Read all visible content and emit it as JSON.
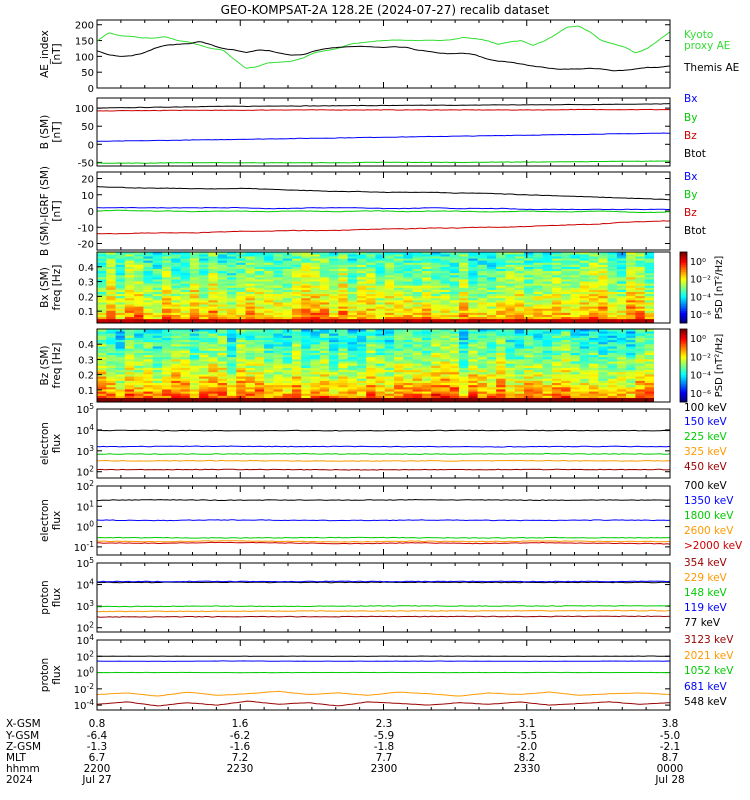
{
  "title": "GEO-KOMPSAT-2A 128.2E (2024-07-27) recalib dataset",
  "colors": {
    "black": "#000000",
    "blue": "#0000ff",
    "green": "#00cc00",
    "red": "#cc0000",
    "orange": "#ff9900",
    "darkred": "#990000",
    "kyoto": "#33dd33"
  },
  "chart_data": [
    {
      "id": "ae",
      "type": "line",
      "ylabel": "AE_index\n[nT]",
      "yticks": [
        0,
        50,
        100,
        150,
        200
      ],
      "ylim": [
        0,
        215
      ],
      "legend": [
        {
          "text": "Kyoto\nproxy AE",
          "color": "#33dd33"
        },
        {
          "text": "Themis AE",
          "color": "#000000"
        }
      ],
      "series": [
        {
          "name": "Kyoto proxy AE",
          "color": "#33dd33",
          "values": [
            148,
            175,
            165,
            163,
            158,
            158,
            162,
            150,
            145,
            135,
            125,
            120,
            90,
            62,
            68,
            80,
            82,
            85,
            95,
            112,
            118,
            125,
            138,
            143,
            147,
            150,
            152,
            150,
            150,
            152,
            150,
            153,
            160,
            156,
            150,
            138,
            146,
            150,
            135,
            148,
            168,
            192,
            196,
            178,
            150,
            140,
            130,
            110,
            125,
            150,
            178
          ]
        },
        {
          "name": "Themis AE",
          "color": "#000000",
          "values": [
            118,
            105,
            100,
            102,
            110,
            125,
            135,
            138,
            140,
            148,
            136,
            125,
            120,
            112,
            120,
            118,
            110,
            104,
            105,
            118,
            125,
            128,
            130,
            132,
            130,
            128,
            130,
            128,
            120,
            115,
            110,
            108,
            110,
            105,
            92,
            85,
            82,
            76,
            70,
            65,
            60,
            60,
            60,
            62,
            60,
            55,
            56,
            60,
            65,
            65,
            70
          ]
        }
      ]
    },
    {
      "id": "b",
      "type": "line",
      "ylabel": "B (SM)\n[nT]",
      "yticks": [
        -50,
        0,
        50,
        100
      ],
      "ylim": [
        -60,
        128
      ],
      "legend": [
        {
          "text": "Bx",
          "color": "#0000ff"
        },
        {
          "text": "By",
          "color": "#00cc00"
        },
        {
          "text": "Bz",
          "color": "#cc0000"
        },
        {
          "text": "Btot",
          "color": "#000000"
        }
      ],
      "series": [
        {
          "name": "Btot",
          "color": "#000000",
          "values": [
            100,
            101,
            102,
            103,
            104,
            105,
            105,
            106,
            106,
            106,
            107,
            107,
            107,
            108,
            108,
            108,
            109,
            109,
            109,
            110,
            110,
            111,
            111,
            112
          ]
        },
        {
          "name": "Bz",
          "color": "#cc0000",
          "values": [
            92,
            93,
            93,
            94,
            94,
            94,
            94,
            95,
            95,
            95,
            95,
            95,
            95,
            95,
            95,
            95,
            95,
            95,
            95,
            96,
            96,
            96,
            96,
            96
          ]
        },
        {
          "name": "Bx",
          "color": "#0000ff",
          "values": [
            8,
            9,
            10,
            11,
            12,
            13,
            14,
            15,
            16,
            17,
            18,
            19,
            20,
            21,
            22,
            23,
            24,
            25,
            26,
            27,
            28,
            29,
            30,
            31
          ]
        },
        {
          "name": "By",
          "color": "#00cc00",
          "values": [
            -52,
            -52,
            -52,
            -51,
            -51,
            -51,
            -51,
            -51,
            -51,
            -51,
            -51,
            -50,
            -50,
            -50,
            -50,
            -50,
            -49,
            -49,
            -49,
            -48,
            -48,
            -47,
            -47,
            -46
          ]
        }
      ]
    },
    {
      "id": "db",
      "type": "line",
      "ylabel": "B (SM)-IGRF (SM)\n[nT]",
      "yticks": [
        -20,
        -10,
        0,
        10,
        20
      ],
      "ylim": [
        -24,
        24
      ],
      "legend": [
        {
          "text": "Bx",
          "color": "#0000ff"
        },
        {
          "text": "By",
          "color": "#00cc00"
        },
        {
          "text": "Bz",
          "color": "#cc0000"
        },
        {
          "text": "Btot",
          "color": "#000000"
        }
      ],
      "series": [
        {
          "name": "Btot",
          "color": "#000000",
          "values": [
            15,
            14.5,
            14,
            14,
            13.8,
            13.5,
            14,
            13.5,
            13,
            12.5,
            12,
            12,
            11.5,
            11.5,
            11.5,
            11,
            11,
            10.5,
            10,
            9.5,
            9,
            8.5,
            8,
            7.5,
            7
          ]
        },
        {
          "name": "Bx",
          "color": "#0000ff",
          "values": [
            2,
            2,
            2,
            2,
            2,
            2,
            2,
            1.5,
            1.5,
            2,
            2,
            2,
            1.5,
            1.5,
            2,
            1.5,
            1.5,
            1.5,
            1,
            1,
            1,
            1,
            1,
            1,
            1
          ]
        },
        {
          "name": "By",
          "color": "#00cc00",
          "values": [
            0,
            0.5,
            0,
            0,
            -0.5,
            0,
            0,
            -0.5,
            0,
            0,
            -0.5,
            0,
            0,
            -0.5,
            0,
            0,
            -0.5,
            -0.5,
            0,
            -0.5,
            -0.5,
            0,
            -0.5,
            -1,
            -0.5
          ]
        },
        {
          "name": "Bz",
          "color": "#cc0000",
          "values": [
            -14,
            -14,
            -13.5,
            -13.5,
            -13.5,
            -13,
            -12.5,
            -12.5,
            -12,
            -12,
            -12,
            -11.5,
            -11,
            -11,
            -10.5,
            -10.5,
            -10,
            -10,
            -9.5,
            -9,
            -8.5,
            -8,
            -7,
            -6.5,
            -6
          ]
        }
      ]
    },
    {
      "id": "bx_spec",
      "type": "heatmap",
      "ylabel": "Bx (SM)\nfreq [Hz]",
      "yticks": [
        0.1,
        0.2,
        0.3,
        0.4
      ],
      "ylim": [
        0.02,
        0.5
      ],
      "colorbar": {
        "label": "PSD [nT²/Hz]",
        "ticks": [
          "10⁰",
          "10⁻²",
          "10⁻⁴",
          "10⁻⁶"
        ],
        "range": [
          -7,
          1
        ]
      },
      "ncols": 60,
      "nrows": 34,
      "base_low": -0.5,
      "base_high": -3.5
    },
    {
      "id": "bz_spec",
      "type": "heatmap",
      "ylabel": "Bz (SM)\nfreq [Hz]",
      "yticks": [
        0.1,
        0.2,
        0.3,
        0.4
      ],
      "ylim": [
        0.02,
        0.5
      ],
      "colorbar": {
        "label": "PSD [nT²/Hz]",
        "ticks": [
          "10⁰",
          "10⁻²",
          "10⁻⁴",
          "10⁻⁶"
        ],
        "range": [
          -7,
          1
        ]
      },
      "ncols": 60,
      "nrows": 34,
      "base_low": 0.2,
      "base_high": -3.8
    },
    {
      "id": "eflux1",
      "type": "line",
      "log": true,
      "ylabel": "electron\nflux",
      "yticks_exp": [
        2,
        3,
        4,
        5
      ],
      "ylim_exp": [
        1.7,
        5
      ],
      "legend": [
        {
          "text": "100 keV",
          "color": "#000000"
        },
        {
          "text": "150 keV",
          "color": "#0000ff"
        },
        {
          "text": "225 keV",
          "color": "#00cc00"
        },
        {
          "text": "325 keV",
          "color": "#ff9900"
        },
        {
          "text": "450 keV",
          "color": "#990000"
        }
      ],
      "series": [
        {
          "name": "100 keV",
          "color": "#000000",
          "values": [
            3.98,
            3.97,
            3.96,
            3.97,
            3.96,
            3.97,
            3.98,
            3.97,
            3.96,
            3.97
          ]
        },
        {
          "name": "150 keV",
          "color": "#0000ff",
          "values": [
            3.2,
            3.21,
            3.22,
            3.2,
            3.21,
            3.2,
            3.19,
            3.2,
            3.21,
            3.2
          ]
        },
        {
          "name": "225 keV",
          "color": "#00cc00",
          "values": [
            2.85,
            2.84,
            2.85,
            2.86,
            2.85,
            2.84,
            2.85,
            2.86,
            2.85,
            2.85
          ]
        },
        {
          "name": "325 keV",
          "color": "#ff9900",
          "values": [
            2.52,
            2.52,
            2.53,
            2.52,
            2.51,
            2.52,
            2.52,
            2.53,
            2.52,
            2.52
          ]
        },
        {
          "name": "450 keV",
          "color": "#990000",
          "values": [
            2.1,
            2.1,
            2.11,
            2.1,
            2.09,
            2.1,
            2.1,
            2.11,
            2.1,
            2.1
          ]
        }
      ]
    },
    {
      "id": "eflux2",
      "type": "line",
      "log": true,
      "ylabel": "electron\nflux",
      "yticks_exp": [
        -1,
        0,
        1,
        2
      ],
      "ylim_exp": [
        -1.4,
        2
      ],
      "legend": [
        {
          "text": "700 keV",
          "color": "#000000"
        },
        {
          "text": "1350 keV",
          "color": "#0000ff"
        },
        {
          "text": "1800 keV",
          "color": "#00cc00"
        },
        {
          "text": "2600 keV",
          "color": "#ff9900"
        },
        {
          "text": ">2000 keV",
          "color": "#cc0000"
        }
      ],
      "series": [
        {
          "name": "700 keV",
          "color": "#000000",
          "values": [
            1.3,
            1.32,
            1.3,
            1.31,
            1.3,
            1.32,
            1.31,
            1.3,
            1.31,
            1.3
          ]
        },
        {
          "name": "1350 keV",
          "color": "#0000ff",
          "values": [
            0.32,
            0.3,
            0.33,
            0.31,
            0.3,
            0.32,
            0.31,
            0.3,
            0.32,
            0.31
          ]
        },
        {
          "name": "1800 keV",
          "color": "#00cc00",
          "values": [
            -0.55,
            -0.55,
            -0.56,
            -0.55,
            -0.54,
            -0.55,
            -0.56,
            -0.55,
            -0.55,
            -0.55
          ]
        },
        {
          "name": "2600 keV",
          "color": "#ff9900",
          "values": [
            -0.72,
            -0.74,
            -0.7,
            -0.73,
            -0.75,
            -0.72,
            -0.74,
            -0.71,
            -0.73,
            -0.74
          ]
        },
        {
          "name": ">2000 keV",
          "color": "#cc0000",
          "values": [
            -0.8,
            -0.82,
            -0.78,
            -0.81,
            -0.84,
            -0.8,
            -0.83,
            -0.79,
            -0.82,
            -0.85
          ]
        }
      ]
    },
    {
      "id": "pflux1",
      "type": "line",
      "log": true,
      "ylabel": "proton\nflux",
      "yticks_exp": [
        2,
        3,
        4,
        5
      ],
      "ylim_exp": [
        1.8,
        5
      ],
      "legend": [
        {
          "text": "354 keV",
          "color": "#990000"
        },
        {
          "text": "229 keV",
          "color": "#ff9900"
        },
        {
          "text": "148 keV",
          "color": "#00cc00"
        },
        {
          "text": "119 keV",
          "color": "#0000ff"
        },
        {
          "text": "77 keV",
          "color": "#000000"
        }
      ],
      "series": [
        {
          "name": "77 keV",
          "color": "#000000",
          "values": [
            4.1,
            4.1,
            4.11,
            4.1,
            4.1,
            4.11,
            4.1,
            4.1,
            4.1,
            4.1
          ]
        },
        {
          "name": "119 keV",
          "color": "#0000ff",
          "values": [
            4.14,
            4.14,
            4.15,
            4.14,
            4.15,
            4.14,
            4.15,
            4.14,
            4.14,
            4.15
          ]
        },
        {
          "name": "148 keV",
          "color": "#00cc00",
          "values": [
            2.98,
            2.99,
            3.0,
            2.99,
            3.0,
            3.01,
            3.0,
            3.01,
            3.01,
            3.02
          ]
        },
        {
          "name": "229 keV",
          "color": "#ff9900",
          "values": [
            2.75,
            2.76,
            2.76,
            2.77,
            2.77,
            2.78,
            2.78,
            2.78,
            2.79,
            2.79
          ]
        },
        {
          "name": "354 keV",
          "color": "#990000",
          "values": [
            2.5,
            2.5,
            2.51,
            2.51,
            2.51,
            2.52,
            2.52,
            2.52,
            2.53,
            2.53
          ]
        }
      ]
    },
    {
      "id": "pflux2",
      "type": "line",
      "log": true,
      "ylabel": "proton\nflux",
      "yticks_exp": [
        -4,
        -2,
        0,
        2,
        4
      ],
      "ylim_exp": [
        -4.6,
        4
      ],
      "legend": [
        {
          "text": "3123 keV",
          "color": "#990000"
        },
        {
          "text": "2021 keV",
          "color": "#ff9900"
        },
        {
          "text": "1052 keV",
          "color": "#00cc00"
        },
        {
          "text": "681 keV",
          "color": "#0000ff"
        },
        {
          "text": "548 keV",
          "color": "#000000"
        }
      ],
      "series": [
        {
          "name": "548 keV",
          "color": "#000000",
          "values": [
            2.0,
            2.02,
            2.0,
            2.01,
            2.0,
            2.02,
            2.01,
            2.0,
            2.01,
            2.02
          ]
        },
        {
          "name": "681 keV",
          "color": "#0000ff",
          "values": [
            1.4,
            1.38,
            1.42,
            1.4,
            1.39,
            1.41,
            1.4,
            1.38,
            1.41,
            1.4
          ]
        },
        {
          "name": "1052 keV",
          "color": "#00cc00",
          "values": [
            0.0,
            0.01,
            0.0,
            0.0,
            0.01,
            0.0,
            0.0,
            0.01,
            0.0,
            0.0
          ]
        },
        {
          "name": "2021 keV",
          "color": "#ff9900",
          "values": [
            -2.7,
            -2.5,
            -2.9,
            -2.4,
            -2.8,
            -2.6,
            -2.3,
            -2.7,
            -2.5,
            -2.8,
            -2.4,
            -2.6,
            -2.9,
            -2.5,
            -2.7,
            -2.4,
            -2.8,
            -2.6,
            -2.5,
            -2.7
          ]
        },
        {
          "name": "3123 keV",
          "color": "#990000",
          "values": [
            -3.9,
            -3.6,
            -4.1,
            -3.7,
            -4.0,
            -3.5,
            -3.9,
            -3.7,
            -4.1,
            -3.6,
            -3.8,
            -4.0,
            -3.7,
            -3.9,
            -3.6,
            -4.0,
            -3.8,
            -3.6,
            -3.9,
            -3.7
          ]
        }
      ]
    }
  ],
  "xaxis": {
    "rows": [
      {
        "label": "X-GSM",
        "values": [
          "0.8",
          "1.6",
          "2.3",
          "3.1",
          "3.8"
        ]
      },
      {
        "label": "Y-GSM",
        "values": [
          "-6.4",
          "-6.2",
          "-5.9",
          "-5.5",
          "-5.0"
        ]
      },
      {
        "label": "Z-GSM",
        "values": [
          "-1.3",
          "-1.6",
          "-1.8",
          "-2.0",
          "-2.1"
        ]
      },
      {
        "label": "MLT",
        "values": [
          "6.7",
          "7.2",
          "7.7",
          "8.2",
          "8.7"
        ]
      },
      {
        "label": "hhmm",
        "values": [
          "2200",
          "2230",
          "2300",
          "2330",
          "0000"
        ]
      },
      {
        "label": "2024",
        "values": [
          "Jul 27",
          "",
          "",
          "",
          "Jul 28"
        ]
      }
    ]
  }
}
